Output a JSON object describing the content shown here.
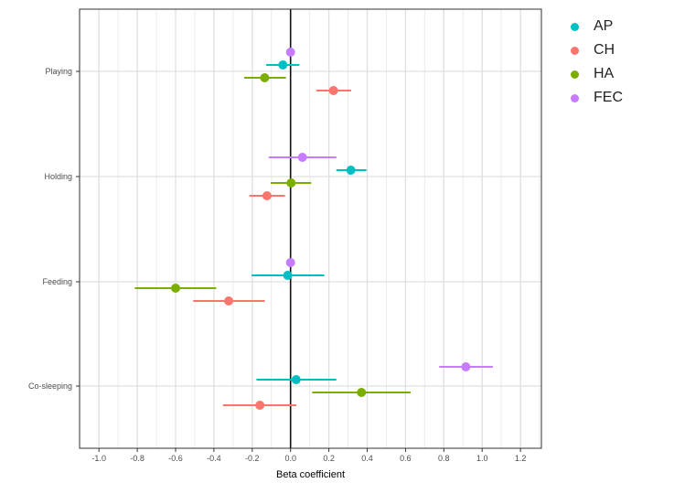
{
  "chart_data": {
    "type": "forest",
    "xlabel": "Beta coefficient",
    "ylabel": "",
    "xlim": [
      -1.1,
      1.31
    ],
    "x_ticks": [
      "-1.0",
      "-0.8",
      "-0.6",
      "-0.4",
      "-0.2",
      "0.0",
      "0.2",
      "0.4",
      "0.6",
      "0.8",
      "1.0",
      "1.2"
    ],
    "grid": true,
    "reference_line": 0,
    "categories": [
      "Playing",
      "Holding",
      "Feeding",
      "Co-sleeping"
    ],
    "legend_position": "right",
    "series": [
      {
        "name": "AP",
        "color": "#00BFC4",
        "estimate": [
          -0.04,
          0.315,
          -0.015,
          0.029
        ],
        "lower": [
          -0.127,
          0.239,
          -0.203,
          -0.178
        ],
        "upper": [
          0.046,
          0.396,
          0.176,
          0.239
        ]
      },
      {
        "name": "CH",
        "color": "#F8766D",
        "estimate": [
          0.224,
          -0.123,
          -0.323,
          -0.16
        ],
        "lower": [
          0.134,
          -0.215,
          -0.508,
          -0.353
        ],
        "upper": [
          0.316,
          -0.029,
          -0.134,
          0.03
        ]
      },
      {
        "name": "HA",
        "color": "#7CAE00",
        "estimate": [
          -0.135,
          0.003,
          -0.6,
          0.37
        ],
        "lower": [
          -0.242,
          -0.104,
          -0.813,
          0.113
        ],
        "upper": [
          -0.024,
          0.108,
          -0.388,
          0.627
        ]
      },
      {
        "name": "FEC",
        "color": "#C77CFF",
        "estimate": [
          0,
          0.062,
          0,
          0.915
        ],
        "lower": [
          0,
          -0.114,
          0,
          0.776
        ],
        "upper": [
          0,
          0.239,
          0,
          1.056
        ]
      }
    ]
  }
}
